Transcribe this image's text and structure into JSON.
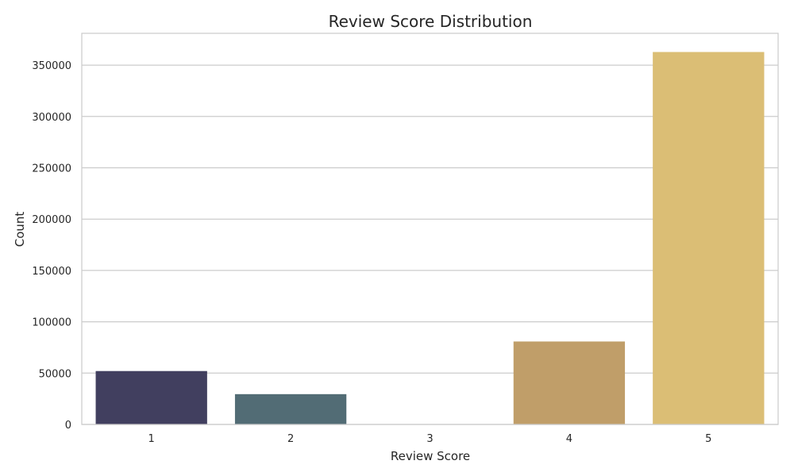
{
  "chart_data": {
    "type": "bar",
    "title": "Review Score Distribution",
    "xlabel": "Review Score",
    "ylabel": "Count",
    "categories": [
      "1",
      "2",
      "3",
      "4",
      "5"
    ],
    "values": [
      52000,
      29500,
      0,
      80800,
      362800
    ],
    "colors": [
      "#413f5f",
      "#526c75",
      "#8b8f7d",
      "#c09e69",
      "#dbbe75"
    ],
    "ylim": [
      0,
      381000
    ],
    "yticks": [
      0,
      50000,
      100000,
      150000,
      200000,
      250000,
      300000,
      350000
    ],
    "ytick_labels": [
      "0",
      "50000",
      "100000",
      "150000",
      "200000",
      "250000",
      "300000",
      "350000"
    ],
    "grid": true,
    "legend": "none"
  }
}
